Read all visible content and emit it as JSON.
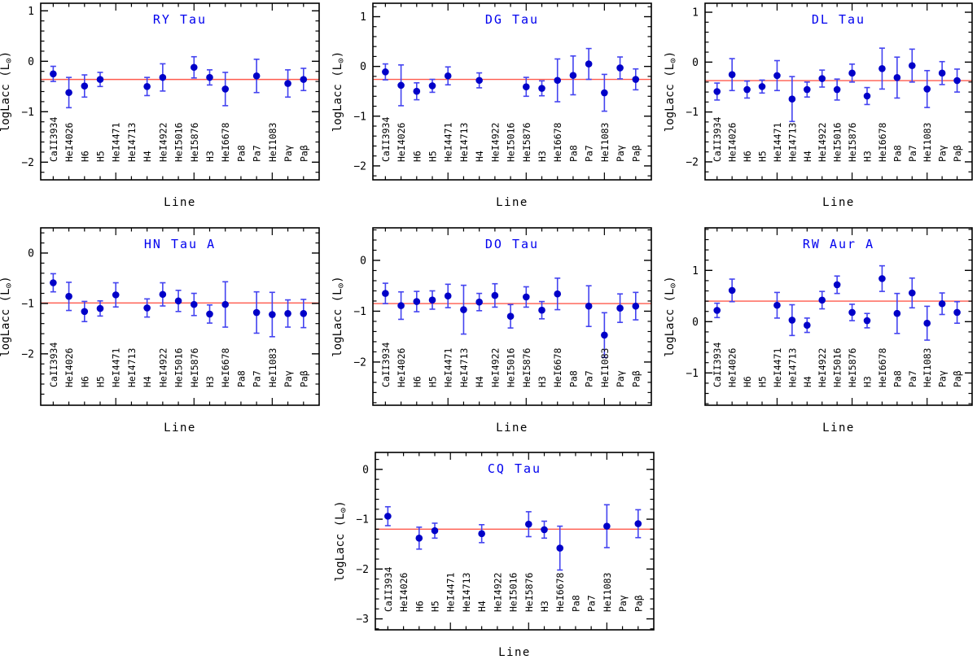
{
  "figure": {
    "xlabel": "Line",
    "ylabel": "logLacc (L⊙)",
    "categories": [
      "CaII3934",
      "HeI4026",
      "H6",
      "H5",
      "HeI4471",
      "HeI4713",
      "H4",
      "HeI4922",
      "HeI5016",
      "HeI5876",
      "H3",
      "HeI6678",
      "Pa8",
      "Pa7",
      "HeI1083",
      "Paγ",
      "Paβ"
    ],
    "colors": {
      "point": "#0000c8",
      "errorbar": "#4343f0",
      "mean_line": "#ff5a4d",
      "title": "#0000ee",
      "axis": "#000000",
      "text": "#000000",
      "background": "#ffffff"
    }
  },
  "chart_data": [
    {
      "type": "scatter",
      "title": "RY Tau",
      "xlabel": "Line",
      "ylabel": "logLacc (L⊙)",
      "mean_line": -0.36,
      "ylim": [
        -2.35,
        1.15
      ],
      "yticks": [
        1,
        0,
        -1,
        -2
      ],
      "values": [
        -0.25,
        -0.62,
        -0.49,
        -0.36,
        null,
        null,
        -0.5,
        -0.32,
        null,
        -0.12,
        -0.32,
        -0.55,
        null,
        -0.29,
        null,
        -0.44,
        -0.36
      ],
      "errors": [
        0.15,
        0.3,
        0.22,
        0.14,
        null,
        null,
        0.18,
        0.27,
        null,
        0.21,
        0.15,
        0.33,
        null,
        0.33,
        null,
        0.27,
        0.22
      ]
    },
    {
      "type": "scatter",
      "title": "DG Tau",
      "xlabel": "Line",
      "ylabel": "logLacc (L⊙)",
      "mean_line": -0.26,
      "ylim": [
        -2.28,
        1.27
      ],
      "yticks": [
        1,
        0,
        -1,
        -2
      ],
      "values": [
        -0.11,
        -0.38,
        -0.5,
        -0.39,
        -0.19,
        null,
        -0.28,
        null,
        null,
        -0.41,
        -0.44,
        -0.28,
        -0.18,
        0.05,
        -0.53,
        -0.03,
        -0.26
      ],
      "errors": [
        0.16,
        0.41,
        0.17,
        0.13,
        0.18,
        null,
        0.15,
        null,
        null,
        0.19,
        0.15,
        0.43,
        0.39,
        0.31,
        0.37,
        0.22,
        0.21
      ]
    },
    {
      "type": "scatter",
      "title": "DL Tau",
      "xlabel": "Line",
      "ylabel": "logLacc (L⊙)",
      "mean_line": -0.37,
      "ylim": [
        -2.36,
        1.18
      ],
      "yticks": [
        1,
        0,
        -1,
        -2
      ],
      "values": [
        -0.59,
        -0.25,
        -0.55,
        -0.49,
        -0.27,
        -0.74,
        -0.55,
        -0.33,
        -0.55,
        -0.22,
        -0.68,
        -0.13,
        -0.31,
        -0.07,
        -0.54,
        -0.22,
        -0.37
      ],
      "errors": [
        0.17,
        0.32,
        0.17,
        0.13,
        0.3,
        0.45,
        0.15,
        0.17,
        0.21,
        0.18,
        0.17,
        0.41,
        0.41,
        0.33,
        0.37,
        0.23,
        0.23
      ]
    },
    {
      "type": "scatter",
      "title": "HN Tau A",
      "xlabel": "Line",
      "ylabel": "logLacc (L⊙)",
      "mean_line": -0.99,
      "ylim": [
        -3.02,
        0.5
      ],
      "yticks": [
        0,
        -1,
        -2
      ],
      "values": [
        -0.59,
        -0.86,
        -1.16,
        -1.1,
        -0.83,
        null,
        -1.09,
        -0.82,
        -0.95,
        -1.02,
        -1.21,
        -1.02,
        null,
        -1.18,
        -1.22,
        -1.2,
        -1.2
      ],
      "errors": [
        0.18,
        0.28,
        0.2,
        0.15,
        0.24,
        null,
        0.18,
        0.23,
        0.21,
        0.22,
        0.18,
        0.45,
        null,
        0.41,
        0.44,
        0.27,
        0.28
      ]
    },
    {
      "type": "scatter",
      "title": "DO Tau",
      "xlabel": "Line",
      "ylabel": "logLacc (L⊙)",
      "mean_line": -0.85,
      "ylim": [
        -2.85,
        0.64
      ],
      "yticks": [
        0,
        -1,
        -2
      ],
      "values": [
        -0.65,
        -0.89,
        -0.81,
        -0.78,
        -0.7,
        -0.97,
        -0.82,
        -0.69,
        -1.1,
        -0.72,
        -0.98,
        -0.66,
        null,
        -0.9,
        -1.47,
        -0.94,
        -0.9
      ],
      "errors": [
        0.2,
        0.27,
        0.2,
        0.18,
        0.23,
        0.48,
        0.17,
        0.23,
        0.23,
        0.2,
        0.17,
        0.31,
        null,
        0.4,
        0.44,
        0.28,
        0.27
      ]
    },
    {
      "type": "scatter",
      "title": "RW Aur A",
      "xlabel": "Line",
      "ylabel": "logLacc (L⊙)",
      "mean_line": 0.4,
      "ylim": [
        -1.63,
        1.83
      ],
      "yticks": [
        1,
        0,
        -1
      ],
      "values": [
        0.22,
        0.61,
        null,
        null,
        0.32,
        0.03,
        -0.07,
        0.42,
        0.72,
        0.18,
        0.02,
        0.84,
        0.16,
        0.56,
        -0.03,
        0.35,
        0.18
      ],
      "errors": [
        0.14,
        0.22,
        null,
        null,
        0.25,
        0.3,
        0.14,
        0.17,
        0.17,
        0.16,
        0.14,
        0.25,
        0.39,
        0.29,
        0.33,
        0.21,
        0.21
      ]
    },
    {
      "type": "scatter",
      "title": "CQ Tau",
      "xlabel": "Line",
      "ylabel": "logLacc (L⊙)",
      "mean_line": -1.2,
      "ylim": [
        -3.22,
        0.34
      ],
      "yticks": [
        0,
        -1,
        -2,
        -3
      ],
      "values": [
        -0.94,
        null,
        -1.38,
        -1.23,
        null,
        null,
        -1.29,
        null,
        null,
        -1.1,
        -1.21,
        -1.58,
        null,
        null,
        -1.14,
        null,
        -1.09
      ],
      "errors": [
        0.19,
        null,
        0.22,
        0.15,
        null,
        null,
        0.18,
        null,
        null,
        0.25,
        0.17,
        0.44,
        null,
        null,
        0.43,
        null,
        0.28
      ]
    }
  ]
}
